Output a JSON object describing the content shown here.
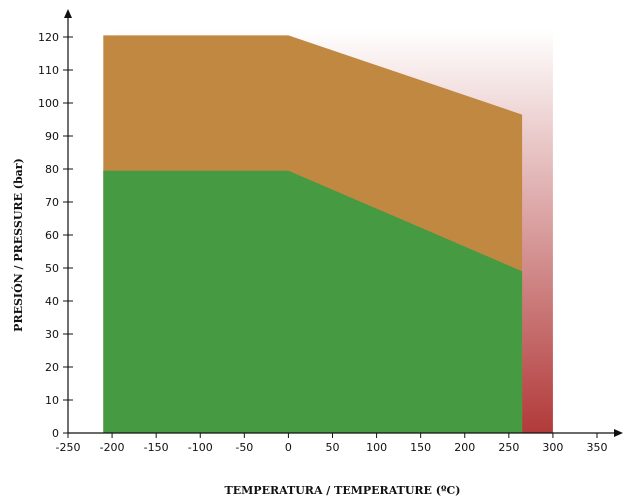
{
  "chart_data": {
    "type": "area",
    "title": "",
    "xlabel": "TEMPERATURA / TEMPERATURE (ºC)",
    "ylabel": "PRESIÓN / PRESSURE (bar)",
    "xlim": [
      -250,
      350
    ],
    "ylim": [
      0,
      120
    ],
    "x_ticks": [
      -250,
      -200,
      -150,
      -100,
      -50,
      0,
      50,
      100,
      150,
      200,
      250,
      300,
      350
    ],
    "y_ticks": [
      0,
      10,
      20,
      30,
      40,
      50,
      60,
      70,
      80,
      90,
      100,
      110,
      120
    ],
    "grid": false,
    "legend": "none",
    "background_gradient": {
      "top": "#ffffff",
      "bottom": "#b23a3a"
    },
    "series": [
      {
        "color": "#c08841",
        "points": [
          [
            -210,
            0
          ],
          [
            -210,
            120.5
          ],
          [
            0,
            120.5
          ],
          [
            265,
            96.5
          ],
          [
            265,
            0
          ]
        ]
      },
      {
        "color": "#459a42",
        "points": [
          [
            -210,
            0
          ],
          [
            -210,
            79.5
          ],
          [
            0,
            79.5
          ],
          [
            265,
            49
          ],
          [
            265,
            0
          ]
        ]
      }
    ]
  }
}
